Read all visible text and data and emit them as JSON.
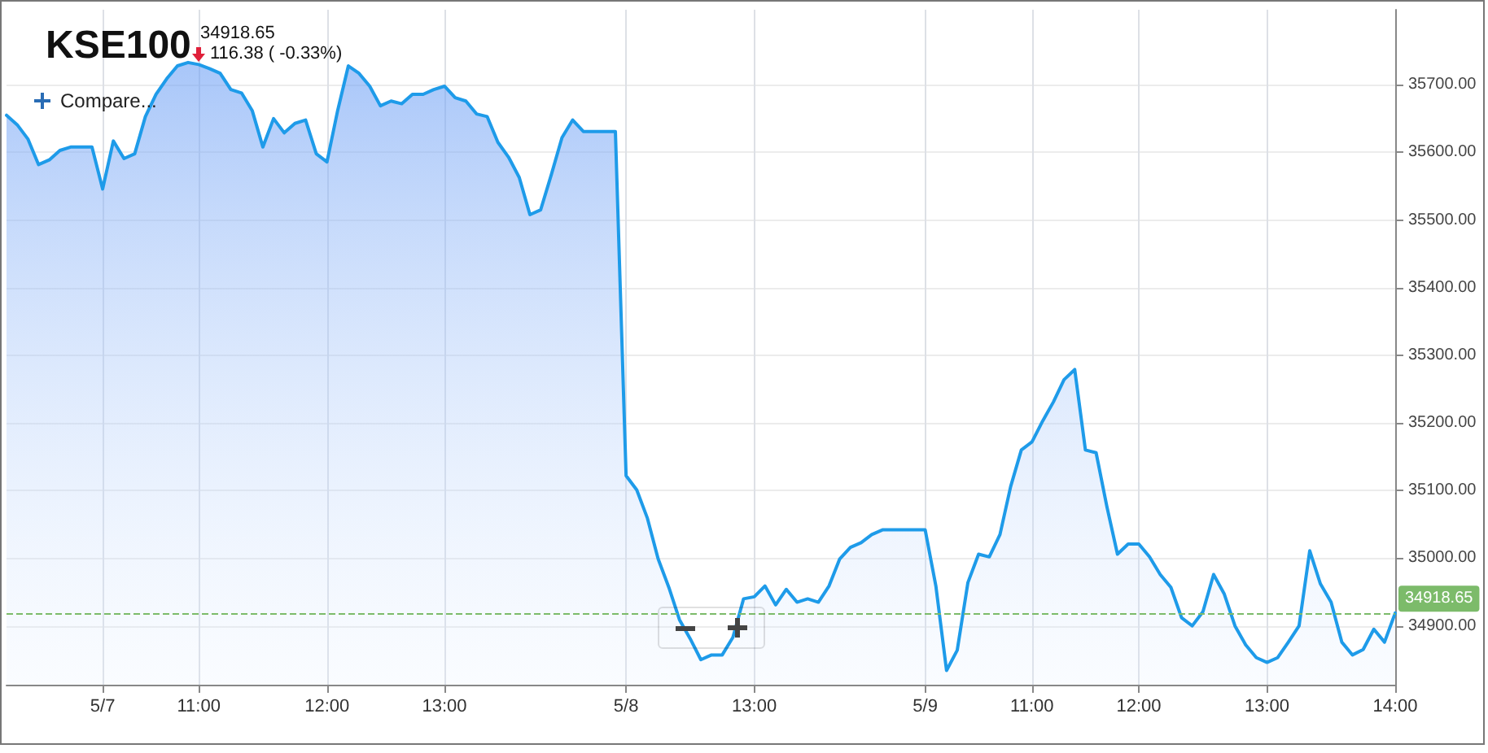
{
  "chart_data": {
    "type": "area",
    "title": "KSE100",
    "subtitle": "34918.65",
    "annotations": [
      "116.38 ( -0.33%)",
      "Compare..."
    ],
    "categories": [
      null,
      null,
      null,
      null,
      null,
      null,
      null,
      null,
      null,
      "5/7",
      null,
      null,
      null,
      null,
      null,
      null,
      null,
      null,
      "11:00",
      null,
      null,
      null,
      null,
      null,
      null,
      null,
      null,
      null,
      null,
      null,
      "12:00",
      null,
      null,
      null,
      null,
      null,
      null,
      null,
      null,
      null,
      null,
      "13:00",
      null,
      null,
      null,
      null,
      null,
      null,
      null,
      null,
      null,
      null,
      null,
      null,
      null,
      null,
      null,
      null,
      "5/8",
      null,
      null,
      null,
      null,
      null,
      null,
      null,
      null,
      null,
      null,
      null,
      "13:00",
      null,
      null,
      null,
      null,
      null,
      null,
      null,
      null,
      null,
      null,
      null,
      null,
      null,
      null,
      null,
      "5/9",
      null,
      null,
      null,
      null,
      null,
      null,
      null,
      null,
      null,
      "11:00",
      null,
      null,
      null,
      null,
      null,
      null,
      null,
      null,
      null,
      "12:00",
      null,
      null,
      null,
      null,
      null,
      null,
      null,
      null,
      null,
      null,
      null,
      "13:00",
      null,
      null,
      null,
      null,
      null,
      null,
      null,
      null,
      null,
      null,
      null,
      "14:00"
    ],
    "series": [
      {
        "color": "#1e9be9",
        "values": [
          35655,
          35641,
          35620,
          35582,
          35589,
          35603,
          35608,
          35608,
          35608,
          35546,
          35617,
          35591,
          35598,
          35653,
          35686,
          35709,
          35728,
          35733,
          35730,
          35724,
          35717,
          35693,
          35688,
          35662,
          35608,
          35650,
          35629,
          35643,
          35648,
          35598,
          35586,
          35662,
          35728,
          35717,
          35698,
          35669,
          35676,
          35672,
          35686,
          35686,
          35693,
          35698,
          35681,
          35676,
          35657,
          35653,
          35615,
          35593,
          35563,
          35508,
          35515,
          35567,
          35622,
          35648,
          35631,
          35631,
          35631,
          35631,
          35122,
          35101,
          35059,
          34999,
          34957,
          34909,
          34881,
          34850,
          34857,
          34857,
          34883,
          34940,
          34943,
          34959,
          34931,
          34954,
          34935,
          34940,
          34935,
          34959,
          34999,
          35016,
          35023,
          35035,
          35042,
          35042,
          35042,
          35042,
          35042,
          34959,
          34834,
          34864,
          34964,
          35006,
          35002,
          35035,
          35106,
          35160,
          35172,
          35203,
          35231,
          35264,
          35279,
          35160,
          35156,
          35077,
          35006,
          35021,
          35021,
          35002,
          34976,
          34957,
          34912,
          34900,
          34921,
          34976,
          34947,
          34900,
          34872,
          34853,
          34846,
          34853,
          34876,
          34900,
          35011,
          34962,
          34935,
          34876,
          34857,
          34865,
          34895,
          34876,
          34919
        ]
      }
    ],
    "ylim": [
      34813,
      35811
    ],
    "yticks": [
      {
        "value": 34900,
        "label": "34900.00"
      },
      {
        "value": 35000,
        "label": "35000.00"
      },
      {
        "value": 35100,
        "label": "35100.00"
      },
      {
        "value": 35200,
        "label": "35200.00"
      },
      {
        "value": 35300,
        "label": "35300.00"
      },
      {
        "value": 35400,
        "label": "35400.00"
      },
      {
        "value": 35500,
        "label": "35500.00"
      },
      {
        "value": 35600,
        "label": "35600.00"
      },
      {
        "value": 35700,
        "label": "35700.00"
      }
    ],
    "ref_lines": [
      {
        "axis": "y",
        "value": 34918.65,
        "label": "34918.65",
        "color": "#7cbb6a",
        "line_style": "dashed"
      }
    ],
    "grid": true,
    "marker": "none",
    "line_style": "solid"
  }
}
